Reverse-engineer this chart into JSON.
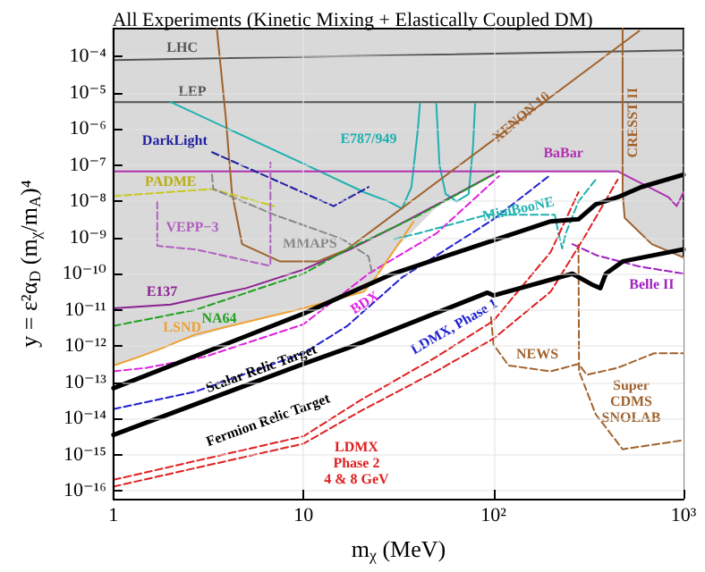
{
  "chart_data": {
    "type": "line",
    "title": "All Experiments (Kinetic Mixing + Elastically Coupled DM)",
    "xlabel": "m$_{χ}$ (MeV)",
    "ylabel": "y = ε²α$_{D}$ (m$_{χ}$/m$_{A}$)⁴",
    "log": "xy",
    "grid": true,
    "xlim": [
      1,
      1000
    ],
    "ylim": [
      6e-17,
      0.0006
    ],
    "xticks": [
      1,
      10,
      {
        "value": 100,
        "label": "10²"
      },
      {
        "value": 1000,
        "label": "10³"
      }
    ],
    "yticks": [
      {
        "value": 1e-16,
        "label": "10⁻¹⁶"
      },
      {
        "value": 1e-15,
        "label": "10⁻¹⁵"
      },
      {
        "value": 1e-14,
        "label": "10⁻¹⁴"
      },
      {
        "value": 1e-13,
        "label": "10⁻¹³"
      },
      {
        "value": 1e-12,
        "label": "10⁻¹²"
      },
      {
        "value": 1e-11,
        "label": "10⁻¹¹"
      },
      {
        "value": 1e-10,
        "label": "10⁻¹⁰"
      },
      {
        "value": 1e-09,
        "label": "10⁻⁹"
      },
      {
        "value": 1e-08,
        "label": "10⁻⁸"
      },
      {
        "value": 1e-07,
        "label": "10⁻⁷"
      },
      {
        "value": 1e-06,
        "label": "10⁻⁶"
      },
      {
        "value": 1e-05,
        "label": "10⁻⁵"
      },
      {
        "value": 0.0001,
        "label": "10⁻⁴"
      }
    ],
    "series": [
      {
        "type": "area",
        "color": "#ffffff",
        "x": [
          1,
          1.2,
          1.6,
          2.2,
          5,
          15,
          22,
          30,
          50,
          80,
          107,
          478,
          480,
          490,
          680,
          1000
        ],
        "values": [
          2.9e-13,
          4e-13,
          7e-13,
          1.3e-12,
          4.6e-12,
          1.9e-11,
          4.5e-11,
          4.5e-10,
          6.8e-09,
          3e-08,
          6.8e-08,
          6.8e-08,
          1.8e-08,
          3.5e-09,
          6.6e-10,
          2.8e-10
        ]
      },
      {
        "name": "LHC",
        "color": "#555555",
        "x": [
          1,
          1000
        ],
        "values": [
          8.1e-05,
          0.00015
        ]
      },
      {
        "name": "LEP",
        "color": "#555555",
        "x": [
          1,
          1000
        ],
        "values": [
          5.6e-06,
          5.6e-06
        ]
      },
      {
        "name": "E787/949",
        "color": "#20b0b0",
        "x": [
          2,
          10,
          20.8,
          28,
          33,
          37,
          40,
          41,
          46,
          50,
          52,
          56,
          64,
          74,
          78,
          80
        ],
        "values": [
          5.6e-06,
          1.1e-07,
          1.8e-08,
          1e-08,
          6.3e-09,
          2.5e-08,
          1e-06,
          5e-06,
          null,
          5e-06,
          1e-07,
          1.6e-08,
          1e-08,
          1.6e-08,
          3.2e-07,
          5e-06
        ]
      },
      {
        "name": "BaBar",
        "color": "#b030b0",
        "x": [
          1,
          450,
          834,
          920,
          1000
        ],
        "values": [
          6.8e-08,
          6.8e-08,
          1.3e-08,
          7.4e-09,
          1.8e-08
        ]
      },
      {
        "name": "E137",
        "color": "#8b2090",
        "x": [
          1,
          2,
          5,
          10,
          18,
          33,
          67,
          107
        ],
        "values": [
          1.1e-11,
          1.4e-11,
          4e-11,
          1.3e-10,
          5e-10,
          2.5e-09,
          1.8e-08,
          6.8e-08
        ]
      },
      {
        "name": "XENON 10",
        "color": "#a0622d",
        "x": [
          3.5,
          3.9,
          4.2,
          4.75,
          7.5,
          11.9,
          16.9,
          585
        ],
        "values": [
          0.00059,
          2.1e-06,
          1.8e-08,
          6.6e-10,
          2.2e-10,
          2.2e-10,
          4.7e-10,
          0.00052
        ]
      },
      {
        "name": "CRESST II",
        "color": "#a0622d",
        "x": [
          478,
          478,
          490,
          680,
          1000
        ],
        "values": [
          0.00059,
          1.8e-08,
          3.5e-09,
          6.6e-10,
          2.8e-10
        ]
      },
      {
        "name": "NEWS",
        "color": "#a0622d",
        "line_style": "dashed",
        "x": [
          97,
          100,
          120,
          200,
          280,
          310,
          450,
          700,
          1000
        ],
        "values": [
          6.3e-12,
          1.1e-12,
          2.9e-13,
          2e-13,
          3.2e-13,
          1.6e-13,
          2.5e-13,
          6.3e-13,
          6.3e-13
        ]
      },
      {
        "name": "Super\nCDMS\nSNOLAB",
        "color": "#a0622d",
        "line_style": "dashed",
        "x": [
          280,
          282,
          345,
          478,
          1000
        ],
        "values": [
          6.3e-10,
          2e-13,
          1.3e-14,
          1.4e-15,
          2.5e-15
        ]
      },
      {
        "name": "BDX",
        "color": "#e020e0",
        "line_style": "dashed",
        "x": [
          1,
          1.5,
          3,
          10,
          22,
          50,
          107
        ],
        "values": [
          2e-13,
          2.5e-13,
          5e-13,
          4e-12,
          1e-10,
          1.3e-09,
          5e-08
        ]
      },
      {
        "name": "LDMX, Phase 1",
        "color": "#2020d0",
        "line_style": "dashed",
        "x": [
          1,
          2.7,
          10,
          17,
          33,
          100,
          200
        ],
        "values": [
          1.8e-14,
          5.5e-14,
          6.3e-13,
          3.6e-12,
          7.9e-11,
          3.2e-09,
          5.5e-08
        ]
      },
      {
        "name": "DarkLight",
        "color": "#2020a0",
        "line_style": "dashed",
        "x": [
          3.3,
          14.4,
          22
        ],
        "values": [
          2.3e-07,
          7.4e-09,
          2.5e-08
        ]
      },
      {
        "name": "PADME",
        "color": "#c8c820",
        "line_style": "dashed",
        "x": [
          1,
          3.3,
          7
        ],
        "values": [
          1.4e-08,
          2.2e-08,
          7.4e-09
        ]
      },
      {
        "name": "MMAPS",
        "color": "#888888",
        "line_style": "dashed",
        "x": [
          3.3,
          3.35,
          7,
          16,
          22,
          23
        ],
        "values": [
          5.5e-08,
          2.2e-08,
          4.3e-09,
          9.1e-10,
          3e-10,
          1e-10
        ]
      },
      {
        "name": "VEPP−3",
        "color": "#b060c0",
        "line_style": "dashed",
        "x": [
          1.7,
          1.7,
          2.7,
          6.5,
          6.7,
          6.7
        ],
        "values": [
          1e-08,
          5.9e-10,
          4.7e-10,
          1.7e-10,
          1.7e-10,
          1.2e-07
        ]
      },
      {
        "name": "NA64",
        "color": "#20a020",
        "line_style": "dashed",
        "x": [
          1,
          2.7,
          10,
          17,
          40,
          100
        ],
        "values": [
          3.6e-12,
          1e-11,
          1e-10,
          4.7e-10,
          4e-09,
          5.5e-08
        ]
      },
      {
        "name": "LSND",
        "color": "#f0a030",
        "x": [
          1,
          1.36,
          1.8,
          2.7,
          10,
          20.8,
          24,
          38
        ],
        "values": [
          2.9e-13,
          5e-13,
          8.7e-13,
          2.1e-12,
          1.1e-11,
          3.2e-11,
          7.9e-11,
          2.8e-09
        ]
      },
      {
        "name": "MiniBooNE",
        "color": "#20b0b0",
        "line_style": "dashed",
        "x": [
          30,
          40,
          93,
          210,
          220,
          230,
          240,
          280,
          345
        ],
        "values": [
          9.1e-10,
          1.3e-09,
          4.3e-09,
          4.3e-09,
          1.3e-09,
          5e-10,
          1.3e-09,
          1e-08,
          4e-08
        ]
      },
      {
        "name": "Belle II",
        "color": "#a020c0",
        "line_style": "dashed",
        "x": [
          260,
          350,
          580,
          1000
        ],
        "values": [
          6.6e-10,
          3.2e-10,
          1.6e-10,
          1e-10
        ]
      },
      {
        "name": "LDMX\nPhase 2\n4 & 8 GeV",
        "color": "#e02020",
        "line_style": "dashed",
        "x": [
          1,
          10,
          20,
          50,
          100,
          200,
          280
        ],
        "values": [
          2e-16,
          3.2e-15,
          3.2e-14,
          5e-13,
          5e-12,
          4e-10,
          1.8e-08
        ]
      },
      {
        "color": "#e02020",
        "line_style": "dashed",
        "x": [
          1,
          10,
          20,
          50,
          100,
          200,
          300,
          450
        ],
        "values": [
          1.3e-16,
          2e-15,
          1.6e-14,
          2e-13,
          1.6e-12,
          3.2e-11,
          1e-09,
          4e-08
        ]
      },
      {
        "name": "Scalar Relic Target",
        "color": "#000000",
        "x": [
          1,
          10,
          29.5,
          87,
          200,
          280,
          345,
          450,
          600,
          1000
        ],
        "values": [
          6.8e-14,
          7.9e-12,
          1e-10,
          6.6e-10,
          2.8e-09,
          3.2e-09,
          8.3e-09,
          1.3e-08,
          2.5e-08,
          5.5e-08
        ]
      },
      {
        "name": "Fermion Relic Target",
        "color": "#000000",
        "x": [
          1,
          10,
          17,
          93,
          100,
          260,
          330,
          365,
          390,
          480,
          1000
        ],
        "values": [
          3.5e-15,
          3.2e-13,
          8.7e-13,
          3e-11,
          2.5e-11,
          1e-10,
          5e-11,
          4e-11,
          1e-10,
          2.2e-10,
          4.7e-10
        ]
      }
    ]
  }
}
